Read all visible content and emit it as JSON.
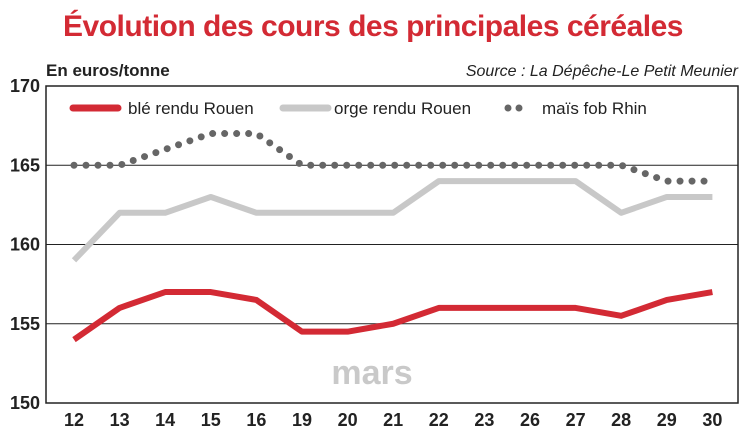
{
  "chart_data": {
    "type": "line",
    "title": "Évolution des cours des principales céréales",
    "unit_label": "En euros/tonne",
    "source": "Source : La Dépêche-Le Petit Meunier",
    "month_label": "mars",
    "categories": [
      "12",
      "13",
      "14",
      "15",
      "16",
      "19",
      "20",
      "21",
      "22",
      "23",
      "26",
      "27",
      "28",
      "29",
      "30"
    ],
    "ylim": [
      150,
      170
    ],
    "yticks": [
      "150",
      "155",
      "160",
      "165",
      "170"
    ],
    "grid": true,
    "legend_position": "top",
    "series": [
      {
        "name": "blé rendu Rouen",
        "color": "#d32a34",
        "style": "solid",
        "values": [
          154,
          156,
          157,
          157,
          156.5,
          154.5,
          154.5,
          155,
          156,
          156,
          156,
          156,
          155.5,
          156.5,
          157
        ]
      },
      {
        "name": "orge rendu Rouen",
        "color": "#c8c8c8",
        "style": "solid",
        "values": [
          159,
          162,
          162,
          163,
          162,
          162,
          162,
          162,
          164,
          164,
          164,
          164,
          162,
          163,
          163
        ]
      },
      {
        "name": "maïs fob Rhin",
        "color": "#666666",
        "style": "dotted",
        "values": [
          165,
          165,
          166,
          167,
          167,
          165,
          165,
          165,
          165,
          165,
          165,
          165,
          165,
          164,
          164
        ]
      }
    ]
  }
}
